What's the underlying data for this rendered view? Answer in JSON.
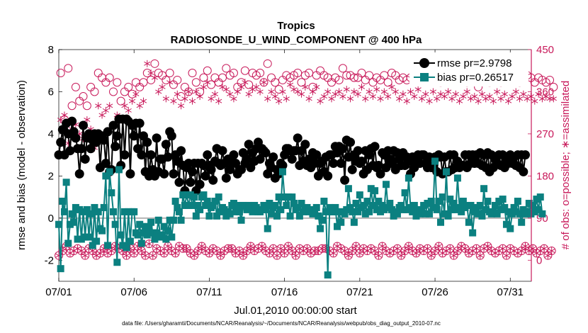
{
  "chart_data": {
    "type": "line",
    "title": "Tropics",
    "subtitle": "RADIOSONDE_U_WIND_COMPONENT @ 400 hPa",
    "xlabel": "Jul.01,2010 00:00:00 start",
    "ylabel": "rmse and bias (model - observation)",
    "y2label": "# of obs: o=possible; ∗=assimilated",
    "footnote": "data file: /Users/gharamti/Documents/NCAR/Reanalysis/~/Documents/NCAR/Reanalysis/webpub/obs_diag_output_2010-07.nc",
    "xlim": [
      0,
      31.4
    ],
    "ylim": [
      -3,
      8
    ],
    "y2lim": [
      -45,
      450
    ],
    "x_tick_values": [
      0,
      5,
      10,
      15,
      20,
      25,
      30
    ],
    "x_tick_labels": [
      "07/01",
      "07/06",
      "07/11",
      "07/16",
      "07/21",
      "07/26",
      "07/31"
    ],
    "y_tick_labels": [
      "-2",
      "0",
      "2",
      "4",
      "6",
      "8"
    ],
    "y2_tick_labels": [
      "0",
      "90",
      "180",
      "270",
      "360",
      "450"
    ],
    "legend": {
      "location": "top-right",
      "entries": [
        {
          "name": "rmse pr=2.9798",
          "color": "#000000"
        },
        {
          "name": "bias pr=0.26517",
          "color": "#0b8080"
        }
      ]
    },
    "colors": {
      "rmse": "#000000",
      "bias": "#0b8080",
      "obs": "#c8195a",
      "zero": "#b4b4b4"
    },
    "x_step": 0.125,
    "series": [
      {
        "name": "rmse",
        "values": [
          3.0,
          3.6,
          4.2,
          3.0,
          4.5,
          4.0,
          3.2,
          4.6,
          4.1,
          3.8,
          3.3,
          2.1,
          3.3,
          4.4,
          2.8,
          3.8,
          4.0,
          3.3,
          3.7,
          4.0,
          3.6,
          4.0,
          2.4,
          3.9,
          3.7,
          2.6,
          4.1,
          2.2,
          2.3,
          4.4,
          3.4,
          3.9,
          4.7,
          2.5,
          4.7,
          3.0,
          4.7,
          4.6,
          2.1,
          4.4,
          3.9,
          4.5,
          3.3,
          4.5,
          3.0,
          3.9,
          2.2,
          3.6,
          2.0,
          3.0,
          2.3,
          2.0,
          3.8,
          2.2,
          2.8,
          2.8,
          2.1,
          3.5,
          2.9,
          4.1,
          3.9,
          2.1,
          3.0,
          2.7,
          1.7,
          3.2,
          2.5,
          1.3,
          2.4,
          2.6,
          1.7,
          2.2,
          2.6,
          1.3,
          2.6,
          1.6,
          2.6,
          2.5,
          2.0,
          3.0,
          2.5,
          2.3,
          1.8,
          2.7,
          3.3,
          2.6,
          2.5,
          3.2,
          2.6,
          1.9,
          2.8,
          2.3,
          2.7,
          3.0,
          2.6,
          2.1,
          2.3,
          2.3,
          3.1,
          2.6,
          2.8,
          3.5,
          2.4,
          3.1,
          2.7,
          3.3,
          3.6,
          2.8,
          3.3,
          3.2,
          3.1,
          2.1,
          2.6,
          2.4,
          2.9,
          1.9,
          2.3,
          2.1,
          2.6,
          2.5,
          3.0,
          3.3,
          3.3,
          3.2,
          2.8,
          3.2,
          3.2,
          3.8,
          2.5,
          3.2,
          2.7,
          3.5,
          2.5,
          2.8,
          2.4,
          3.1,
          2.6,
          3.0,
          2.0,
          2.6,
          2.7,
          2.2,
          2.9,
          2.0,
          3.0,
          3.0,
          2.6,
          3.4,
          3.1,
          3.4,
          2.6,
          3.3,
          1.8,
          3.7,
          2.9,
          3.6,
          2.3,
          3.0,
          2.7,
          3.2,
          2.6,
          2.7,
          2.1,
          3.2,
          2.3,
          3.0,
          3.3,
          2.5,
          3.4,
          2.4,
          2.5,
          2.1,
          3.1,
          3.0,
          2.4,
          3.2,
          2.8,
          2.6,
          3.2,
          2.3,
          3.1,
          2.8,
          2.5,
          3.1,
          2.5,
          2.9,
          2.7,
          2.1,
          2.9,
          2.4,
          2.6,
          3.0,
          2.6,
          3.0,
          3.0,
          2.6,
          2.4,
          2.9,
          2.4,
          2.5,
          2.9,
          2.2,
          3.0,
          2.9,
          2.1,
          2.9,
          2.2,
          2.2,
          3.0,
          2.3,
          3.0,
          2.4,
          2.7,
          2.4,
          2.5,
          2.5,
          3.0,
          2.4,
          3.0,
          2.6,
          3.0,
          2.6,
          3.0,
          2.6,
          3.1,
          2.5,
          3.0,
          2.4,
          3.1,
          2.2,
          3.0,
          2.4,
          2.8,
          2.6,
          3.0,
          2.5,
          3.0,
          2.4,
          2.8,
          2.6,
          3.0,
          2.6,
          2.9,
          2.5,
          3.0,
          2.4,
          3.0,
          2.2,
          3.0
        ]
      },
      {
        "name": "bias",
        "values": [
          -0.3,
          -2.4,
          0.8,
          0.3,
          1.7,
          -1.2,
          -0.3,
          0.2,
          -0.2,
          0.5,
          -1.0,
          0.4,
          -1.0,
          0.3,
          -0.9,
          0.4,
          -0.9,
          0.2,
          -1.3,
          0.5,
          -1.1,
          0.3,
          -0.5,
          -0.6,
          0.5,
          2.0,
          -1.3,
          2.2,
          1.2,
          0.3,
          -0.3,
          -2.1,
          2.3,
          -0.8,
          -1.3,
          0.3,
          -1.4,
          0.3,
          -1.1,
          0.3,
          0.3,
          -0.7,
          -0.8,
          -0.3,
          -1.2,
          -0.7,
          -0.4,
          -0.8,
          -0.5,
          -0.2,
          -0.7,
          -1.0,
          -0.7,
          -0.1,
          -0.9,
          -0.8,
          -0.4,
          -1.0,
          -0.6,
          -0.1,
          -0.9,
          -0.1,
          0.8,
          0.5,
          0.3,
          -0.1,
          1.1,
          0.6,
          1.1,
          0.6,
          1.1,
          0.6,
          1.0,
          0.1,
          0.6,
          0.4,
          1.0,
          1.1,
          0.6,
          0.8,
          0.1,
          0.5,
          0.6,
          0.8,
          0.1,
          1.0,
          0.3,
          0.5,
          0.4,
          0.1,
          0.3,
          0.2,
          0.6,
          0.7,
          0.3,
          0.6,
          0.3,
          -0.1,
          0.6,
          0.6,
          0.4,
          0.6,
          0.5,
          0.3,
          0.6,
          0.5,
          0.3,
          0.3,
          0.4,
          0.6,
          0.4,
          -0.5,
          0.7,
          0.2,
          0.5,
          0.6,
          0.1,
          1.0,
          0.4,
          2.2,
          1.0,
          0.6,
          1.0,
          0.1,
          1.0,
          0.7,
          0.4,
          0.5,
          0.1,
          0.7,
          0.3,
          0.4,
          0.5,
          0.3,
          0.4,
          0.2,
          0.3,
          0.5,
          0.1,
          -0.5,
          -0.1,
          0.8,
          0.3,
          -2.7,
          0.5,
          0.3,
          0.3,
          0.5,
          -0.4,
          0.3,
          -0.2,
          0.3,
          0.2,
          0.4,
          1.4,
          0.5,
          0.3,
          -0.2,
          0.7,
          0.3,
          1.1,
          0.5,
          0.6,
          0.2,
          0.8,
          0.3,
          1.4,
          0.6,
          1.3,
          0.4,
          0.8,
          0.3,
          0.6,
          0.4,
          1.6,
          0.5,
          0.7,
          0.4,
          0.1,
          0.3,
          0.2,
          0.5,
          0.6,
          0.4,
          1.2,
          0.4,
          1.9,
          0.5,
          0.3,
          0.6,
          0.1,
          0.4,
          0.2,
          0.3,
          0.6,
          0.2,
          0.7,
          0.2,
          0.8,
          0.5,
          2.7,
          0.4,
          0.8,
          -0.2,
          1.0,
          0.2,
          2.2,
          0.1,
          0.9,
          0.4,
          0.7,
          0.4,
          1.9,
          0.5,
          0.3,
          0.8,
          0.5,
          0.6,
          -0.2,
          0.6,
          -0.7,
          0.3,
          0.5,
          0.2,
          0.6,
          0.1,
          1.4,
          0.4,
          0.8,
          0.3,
          0.2,
          0.3,
          0.6,
          0.2,
          0.8,
          0.4,
          0.9,
          0.5,
          -0.3,
          0.3,
          -0.5,
          0.2,
          0.5,
          0.3,
          0.8,
          0.2,
          -0.2,
          0.4,
          0.2,
          0.3,
          0.7,
          0.2,
          0.6,
          0.3,
          0.9,
          0.4,
          1.0,
          0.2
        ]
      },
      {
        "name": "obs_possible",
        "axis": "right",
        "values": [
          10,
          400,
          20,
          300,
          30,
          410,
          15,
          330,
          20,
          370,
          25,
          340,
          20,
          350,
          10,
          330,
          25,
          370,
          20,
          360,
          10,
          400,
          15,
          390,
          25,
          380,
          15,
          390,
          20,
          360,
          30,
          380,
          25,
          340,
          20,
          360,
          10,
          370,
          25,
          355,
          15,
          380,
          30,
          370,
          20,
          380,
          10,
          400,
          35,
          385,
          10,
          420,
          25,
          400,
          20,
          395,
          15,
          385,
          30,
          400,
          20,
          375,
          15,
          385,
          30,
          350,
          25,
          370,
          25,
          360,
          15,
          400,
          10,
          380,
          20,
          360,
          30,
          390,
          20,
          405,
          15,
          375,
          25,
          390,
          20,
          380,
          10,
          390,
          20,
          410,
          25,
          395,
          25,
          400,
          15,
          370,
          20,
          380,
          10,
          405,
          20,
          375,
          30,
          400,
          20,
          395,
          25,
          400,
          30,
          380,
          20,
          420,
          15,
          390,
          25,
          380,
          10,
          365,
          25,
          385,
          15,
          395,
          30,
          390,
          20,
          395,
          10,
          400,
          25,
          380,
          20,
          395,
          25,
          400,
          15,
          370,
          20,
          395,
          20,
          405,
          25,
          395,
          25,
          390,
          20,
          380,
          15,
          390,
          30,
          385,
          25,
          410,
          20,
          395,
          10,
          395,
          20,
          390,
          30,
          390,
          15,
          400,
          25,
          385,
          20,
          395,
          25,
          380,
          20,
          390,
          10,
          385,
          30,
          395,
          20,
          380,
          15,
          400,
          20,
          395,
          25,
          385,
          10,
          390,
          20,
          385,
          30,
          390,
          20,
          390,
          15,
          395,
          25,
          385,
          20,
          400,
          25,
          390,
          10,
          385,
          20,
          390,
          30,
          380,
          15,
          395,
          20,
          390,
          25,
          385,
          10,
          395,
          20,
          385,
          30,
          390,
          25,
          380,
          15,
          395,
          20,
          390,
          25,
          370,
          10,
          385,
          25,
          390,
          30,
          380,
          20,
          395,
          15,
          385,
          20,
          380,
          25,
          395,
          10,
          385,
          25,
          390,
          20,
          400,
          15,
          380,
          20,
          385,
          30,
          395,
          20,
          390,
          25,
          380,
          15,
          390,
          20,
          385,
          25,
          380,
          10,
          385,
          20,
          370
        ]
      },
      {
        "name": "obs_assimilated",
        "axis": "right",
        "values": [
          10,
          300,
          20,
          310,
          30,
          250,
          15,
          280,
          20,
          290,
          25,
          270,
          20,
          260,
          10,
          300,
          25,
          280,
          20,
          240,
          10,
          330,
          15,
          310,
          25,
          320,
          15,
          330,
          20,
          290,
          30,
          310,
          25,
          300,
          20,
          330,
          10,
          320,
          25,
          340,
          15,
          355,
          30,
          330,
          20,
          340,
          10,
          420,
          35,
          400,
          10,
          390,
          25,
          360,
          20,
          370,
          15,
          345,
          30,
          380,
          20,
          340,
          15,
          355,
          30,
          330,
          25,
          345,
          25,
          360,
          15,
          340,
          10,
          360,
          20,
          350,
          30,
          370,
          20,
          380,
          15,
          345,
          25,
          355,
          20,
          340,
          10,
          370,
          20,
          365,
          25,
          355,
          25,
          345,
          15,
          360,
          20,
          370,
          10,
          380,
          20,
          355,
          30,
          365,
          20,
          370,
          25,
          360,
          30,
          380,
          20,
          345,
          15,
          360,
          25,
          350,
          10,
          340,
          25,
          360,
          15,
          345,
          30,
          375,
          20,
          365,
          10,
          360,
          25,
          355,
          20,
          370,
          25,
          345,
          15,
          360,
          20,
          370,
          20,
          340,
          25,
          350,
          25,
          360,
          20,
          345,
          15,
          355,
          30,
          360,
          25,
          350,
          20,
          365,
          10,
          345,
          20,
          360,
          30,
          355,
          15,
          370,
          25,
          345,
          20,
          360,
          25,
          350,
          20,
          365,
          10,
          345,
          30,
          360,
          20,
          350,
          15,
          370,
          20,
          360,
          25,
          345,
          10,
          355,
          20,
          340,
          30,
          360,
          20,
          350,
          15,
          365,
          25,
          345,
          20,
          355,
          25,
          340,
          10,
          360,
          20,
          345,
          30,
          355,
          15,
          350,
          20,
          360,
          25,
          345,
          10,
          355,
          20,
          340,
          30,
          350,
          25,
          360,
          15,
          345,
          20,
          350,
          25,
          340,
          10,
          355,
          25,
          345,
          30,
          350,
          20,
          340,
          15,
          360,
          20,
          345,
          25,
          355,
          10,
          340,
          25,
          350,
          20,
          360,
          15,
          345,
          20,
          355,
          30,
          345,
          20,
          350,
          25,
          340,
          15,
          355,
          20,
          345,
          25,
          350,
          10,
          345,
          20,
          345
        ]
      }
    ]
  }
}
